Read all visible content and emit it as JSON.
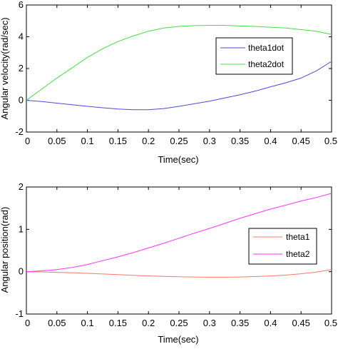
{
  "chart_data": [
    {
      "type": "line",
      "xlabel": "Time(sec)",
      "ylabel": "Angular velocity(rad/sec)",
      "xlim": [
        0,
        0.5
      ],
      "ylim": [
        -2,
        6
      ],
      "xticks": [
        "0",
        "0.05",
        "0.1",
        "0.15",
        "0.2",
        "0.25",
        "0.3",
        "0.35",
        "0.4",
        "0.45",
        "0.5"
      ],
      "yticks": [
        "-2",
        "0",
        "2",
        "4",
        "6"
      ],
      "grid": false,
      "legend_position": "top-right",
      "x": [
        0,
        0.025,
        0.05,
        0.075,
        0.1,
        0.125,
        0.15,
        0.175,
        0.2,
        0.225,
        0.25,
        0.275,
        0.3,
        0.325,
        0.35,
        0.375,
        0.4,
        0.425,
        0.45,
        0.475,
        0.5
      ],
      "series": [
        {
          "name": "theta1dot",
          "color": "#4a4adf",
          "values": [
            0.0,
            -0.08,
            -0.18,
            -0.28,
            -0.38,
            -0.47,
            -0.55,
            -0.6,
            -0.6,
            -0.52,
            -0.38,
            -0.22,
            -0.06,
            0.15,
            0.35,
            0.58,
            0.85,
            1.1,
            1.4,
            1.85,
            2.45
          ]
        },
        {
          "name": "theta2dot",
          "color": "#44dd44",
          "values": [
            0.0,
            0.7,
            1.4,
            2.05,
            2.7,
            3.25,
            3.7,
            4.05,
            4.35,
            4.55,
            4.65,
            4.7,
            4.72,
            4.72,
            4.68,
            4.65,
            4.6,
            4.55,
            4.45,
            4.35,
            4.15
          ]
        }
      ]
    },
    {
      "type": "line",
      "xlabel": "Time(sec)",
      "ylabel": "Angular position(rad)",
      "xlim": [
        0,
        0.5
      ],
      "ylim": [
        -1,
        2
      ],
      "xticks": [
        "0",
        "0.05",
        "0.1",
        "0.15",
        "0.2",
        "0.25",
        "0.3",
        "0.35",
        "0.4",
        "0.45",
        "0.5"
      ],
      "yticks": [
        "-1",
        "0",
        "1",
        "2"
      ],
      "grid": false,
      "legend_position": "center-right",
      "x": [
        0,
        0.025,
        0.05,
        0.075,
        0.1,
        0.125,
        0.15,
        0.175,
        0.2,
        0.225,
        0.25,
        0.275,
        0.3,
        0.325,
        0.35,
        0.375,
        0.4,
        0.425,
        0.45,
        0.475,
        0.5
      ],
      "series": [
        {
          "name": "theta1",
          "color": "#ff7766",
          "values": [
            0.0,
            -0.005,
            -0.015,
            -0.025,
            -0.04,
            -0.055,
            -0.07,
            -0.085,
            -0.1,
            -0.11,
            -0.12,
            -0.125,
            -0.13,
            -0.13,
            -0.125,
            -0.115,
            -0.1,
            -0.08,
            -0.05,
            -0.01,
            0.05
          ]
        },
        {
          "name": "theta2",
          "color": "#ff33ff",
          "values": [
            0.0,
            0.02,
            0.05,
            0.1,
            0.17,
            0.26,
            0.35,
            0.45,
            0.56,
            0.67,
            0.79,
            0.91,
            1.02,
            1.14,
            1.26,
            1.37,
            1.48,
            1.57,
            1.67,
            1.75,
            1.85
          ]
        }
      ]
    }
  ]
}
